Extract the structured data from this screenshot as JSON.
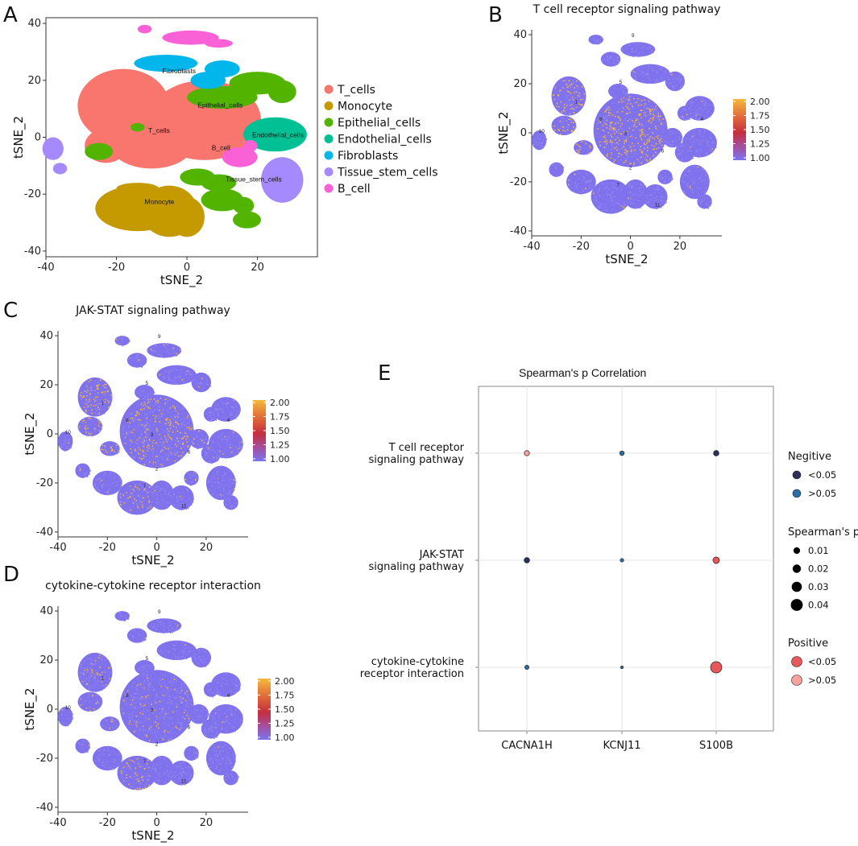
{
  "chart_data": [
    {
      "panel": "A",
      "type": "scatter",
      "title": "",
      "xlabel": "tSNE_2",
      "ylabel": "tSNE_2",
      "xlim": [
        -40,
        37
      ],
      "ylim": [
        -42,
        42
      ],
      "xticks": [
        "-40",
        "-20",
        "0",
        "20"
      ],
      "yticks": [
        "40",
        "20",
        "0",
        "-20",
        "-40"
      ],
      "clusters": [
        {
          "name": "T_cells",
          "label": "T_cells",
          "color": "#F8766D",
          "label_at": [
            -11,
            1.5
          ],
          "blobs": [
            [
              -18,
              11,
              13,
              13
            ],
            [
              5,
              6,
              16,
              14
            ],
            [
              -10,
              -2,
              12,
              9
            ],
            [
              -23,
              -3,
              6,
              6
            ],
            [
              -15,
              3,
              6,
              5
            ]
          ]
        },
        {
          "name": "Monocyte",
          "label": "Monocyte",
          "color": "#C49A00",
          "label_at": [
            -12,
            -23.5
          ],
          "blobs": [
            [
              -14,
              -25,
              12,
              8
            ],
            [
              -5,
              -26,
              8,
              9
            ],
            [
              0,
              -28,
              5,
              7
            ],
            [
              -14,
              -18,
              6,
              2
            ]
          ]
        },
        {
          "name": "Epithelial_cells",
          "label": "Epithelial_cells",
          "color": "#53B400",
          "label_at": [
            3,
            10.5
          ],
          "blobs": [
            [
              10,
              14,
              10,
              4
            ],
            [
              20,
              19,
              8,
              4
            ],
            [
              27,
              16,
              4,
              4
            ],
            [
              -14,
              3.5,
              2,
              1.5
            ],
            [
              -25,
              -5,
              4,
              3
            ],
            [
              3,
              -14,
              5,
              3
            ],
            [
              9,
              -16,
              5,
              3
            ],
            [
              10,
              -22,
              6,
              4
            ],
            [
              16,
              -24,
              3,
              3
            ],
            [
              17,
              -29,
              4,
              3
            ]
          ]
        },
        {
          "name": "Endothelial_cells",
          "label": "Endothelial_cells",
          "color": "#00C094",
          "label_at": [
            18.5,
            0
          ],
          "blobs": [
            [
              25,
              1,
              9,
              6
            ]
          ]
        },
        {
          "name": "Fibroblasts",
          "label": "Fibroblasts",
          "color": "#00B6EB",
          "label_at": [
            -7,
            22.5
          ],
          "blobs": [
            [
              -6,
              26,
              9,
              3
            ],
            [
              6,
              20,
              5,
              3
            ],
            [
              10,
              24,
              5,
              3
            ]
          ]
        },
        {
          "name": "Tissue_stem_cells",
          "label": "Tissue_stem_cells",
          "color": "#A58AFF",
          "label_at": [
            11,
            -15.5
          ],
          "blobs": [
            [
              27,
              -15,
              6,
              8
            ],
            [
              -38,
              -4,
              3,
              4
            ],
            [
              -36,
              -11,
              2,
              2
            ]
          ]
        },
        {
          "name": "B_cell",
          "label": "B_cell",
          "color": "#FB61D7",
          "label_at": [
            7,
            -4.5
          ],
          "blobs": [
            [
              1,
              35,
              8,
              2.5
            ],
            [
              9,
              33,
              4,
              1.5
            ],
            [
              -12,
              38,
              2,
              1.5
            ],
            [
              15,
              -7,
              5,
              3.5
            ],
            [
              18,
              -3,
              2,
              2
            ]
          ]
        }
      ],
      "legend": [
        "T_cells",
        "Monocyte",
        "Epithelial_cells",
        "Endothelial_cells",
        "Fibroblasts",
        "Tissue_stem_cells",
        "B_cell"
      ],
      "legend_position": "right"
    },
    {
      "panel": "B",
      "type": "scatter",
      "title": "T cell receptor signaling pathway",
      "xlabel": "tSNE_2",
      "ylabel": "tSNE_2",
      "xlim": [
        -40,
        37
      ],
      "ylim": [
        -42,
        42
      ],
      "xticks": [
        "-40",
        "-20",
        "0",
        "20"
      ],
      "yticks": [
        "40",
        "20",
        "0",
        "-20",
        "-40"
      ],
      "colorbar": {
        "min": 1.0,
        "max": 2.0,
        "ticks": [
          "2.00",
          "1.75",
          "1.50",
          "1.25",
          "1.00"
        ]
      },
      "high_score_regions": [
        "T cell core",
        "upper-left T cell island"
      ]
    },
    {
      "panel": "C",
      "type": "scatter",
      "title": "JAK-STAT signaling pathway",
      "xlabel": "tSNE_2",
      "ylabel": "tSNE_2",
      "xlim": [
        -40,
        37
      ],
      "ylim": [
        -42,
        42
      ],
      "xticks": [
        "-40",
        "-20",
        "0",
        "20"
      ],
      "yticks": [
        "40",
        "20",
        "0",
        "-20",
        "-40"
      ],
      "colorbar": {
        "min": 1.0,
        "max": 2.0,
        "ticks": [
          "2.00",
          "1.75",
          "1.50",
          "1.25",
          "1.00"
        ]
      },
      "high_score_regions": [
        "T cell core",
        "upper-left T cell island",
        "monocyte region"
      ]
    },
    {
      "panel": "D",
      "type": "scatter",
      "title": "cytokine-cytokine receptor interaction",
      "xlabel": "tSNE_2",
      "ylabel": "tSNE_2",
      "xlim": [
        -40,
        37
      ],
      "ylim": [
        -42,
        42
      ],
      "xticks": [
        "-40",
        "-20",
        "0",
        "20"
      ],
      "yticks": [
        "40",
        "20",
        "0",
        "-20",
        "-40"
      ],
      "colorbar": {
        "min": 1.0,
        "max": 2.0,
        "ticks": [
          "2.00",
          "1.75",
          "1.50",
          "1.25",
          "1.00"
        ]
      },
      "high_score_regions": [
        "left edge of T cell island",
        "monocyte region"
      ]
    },
    {
      "panel": "E",
      "type": "scatter",
      "title": "Spearman's p Correlation",
      "categories": [
        "CACNA1H",
        "KCNJ11",
        "S100B"
      ],
      "rows": [
        [
          "T cell receptor",
          "signaling pathway"
        ],
        [
          "JAK-STAT",
          "signaling pathway"
        ],
        [
          "cytokine-cytokine",
          "receptor interaction"
        ]
      ],
      "points": [
        {
          "row": 0,
          "col": 0,
          "rho": 0.015,
          "direction": "Positive",
          "p": ">0.05"
        },
        {
          "row": 0,
          "col": 1,
          "rho": 0.012,
          "direction": "Negitive",
          "p": ">0.05"
        },
        {
          "row": 0,
          "col": 2,
          "rho": 0.016,
          "direction": "Negitive",
          "p": "<0.05"
        },
        {
          "row": 1,
          "col": 0,
          "rho": 0.016,
          "direction": "Negitive",
          "p": "<0.05"
        },
        {
          "row": 1,
          "col": 1,
          "rho": 0.008,
          "direction": "Negitive",
          "p": ">0.05"
        },
        {
          "row": 1,
          "col": 2,
          "rho": 0.02,
          "direction": "Positive",
          "p": "<0.05"
        },
        {
          "row": 2,
          "col": 0,
          "rho": 0.011,
          "direction": "Negitive",
          "p": ">0.05"
        },
        {
          "row": 2,
          "col": 1,
          "rho": 0.004,
          "direction": "Negitive",
          "p": ">0.05"
        },
        {
          "row": 2,
          "col": 2,
          "rho": 0.04,
          "direction": "Positive",
          "p": "<0.05"
        }
      ],
      "legend": {
        "negative_title": "Negitive",
        "negative_items": [
          {
            "label": "<0.05",
            "color": "#2E2E5E"
          },
          {
            "label": ">0.05",
            "color": "#2C6FA6"
          }
        ],
        "size_title": "Spearman's p",
        "size_items": [
          {
            "label": "0.01",
            "rho": 0.01
          },
          {
            "label": "0.02",
            "rho": 0.02
          },
          {
            "label": "0.03",
            "rho": 0.03
          },
          {
            "label": "0.04",
            "rho": 0.04
          }
        ],
        "positive_title": "Positive",
        "positive_items": [
          {
            "label": "<0.05",
            "color": "#E8585A"
          },
          {
            "label": ">0.05",
            "color": "#F8A3A0"
          }
        ]
      }
    }
  ],
  "panels": {
    "a": "A",
    "b": "B",
    "c": "C",
    "d": "D",
    "e": "E"
  },
  "tsne_cluster_numbers": [
    "1",
    "2",
    "3",
    "4",
    "5",
    "6",
    "7",
    "8",
    "9",
    "10",
    "11"
  ]
}
